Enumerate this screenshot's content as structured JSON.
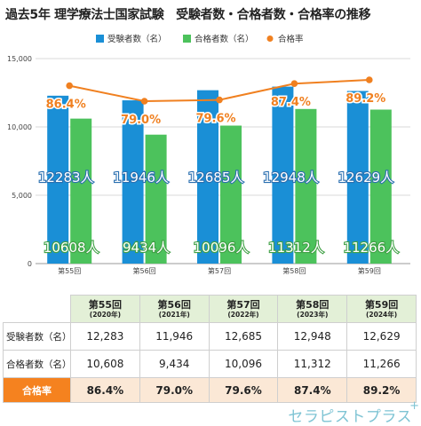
{
  "title": "過去5年 理学療法士国家試験　受験者数・合格者数・合格率の推移",
  "colors": {
    "applicants": "#1a8fd6",
    "passers": "#4cc25c",
    "rate": "#f08020",
    "rate_row": "#f5821f",
    "header_bg": "#e3f0d7"
  },
  "chart_data": {
    "type": "bar",
    "categories": [
      "第55回",
      "第56回",
      "第57回",
      "第58回",
      "第59回"
    ],
    "series": [
      {
        "name": "受験者数（名）",
        "values": [
          12283,
          11946,
          12685,
          12948,
          12629
        ],
        "labels": [
          "12283人",
          "11946人",
          "12685人",
          "12948人",
          "12629人"
        ]
      },
      {
        "name": "合格者数（名）",
        "values": [
          10608,
          9434,
          10096,
          11312,
          11266
        ],
        "labels": [
          "10608人",
          "9434人",
          "10096人",
          "11312人",
          "11266人"
        ]
      }
    ],
    "line_series": {
      "name": "合格率",
      "values": [
        86.4,
        79.0,
        79.6,
        87.4,
        89.2
      ],
      "labels": [
        "86.4%",
        "79.0%",
        "79.6%",
        "87.4%",
        "89.2%"
      ]
    },
    "yticks": [
      "0",
      "5,000",
      "10,000",
      "15,000"
    ],
    "ylim": [
      0,
      15000
    ],
    "legend_position": "top-center",
    "grid": true
  },
  "table": {
    "headers": [
      {
        "title": "第55回",
        "sub": "(2020年)"
      },
      {
        "title": "第56回",
        "sub": "(2021年)"
      },
      {
        "title": "第57回",
        "sub": "(2022年)"
      },
      {
        "title": "第58回",
        "sub": "(2023年)"
      },
      {
        "title": "第59回",
        "sub": "(2024年)"
      }
    ],
    "rows": [
      {
        "label": "受験者数（名）",
        "values": [
          "12,283",
          "11,946",
          "12,685",
          "12,948",
          "12,629"
        ]
      },
      {
        "label": "合格者数（名）",
        "values": [
          "10,608",
          "9,434",
          "10,096",
          "11,312",
          "11,266"
        ]
      }
    ],
    "rate_row": {
      "label": "合格率",
      "values": [
        "86.4%",
        "79.0%",
        "79.6%",
        "87.4%",
        "89.2%"
      ]
    }
  },
  "brand": {
    "name": "セラピストプラス",
    "mark": "+"
  }
}
